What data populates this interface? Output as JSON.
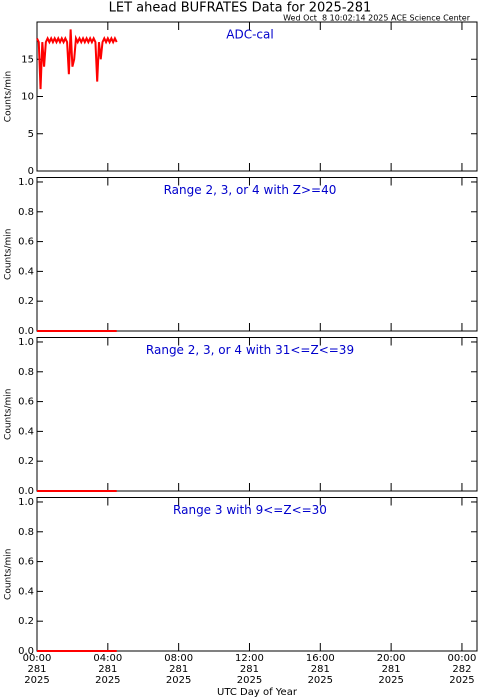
{
  "title": "LET ahead BUFRATES Data for 2025-281",
  "timestamp": "Wed Oct  8 10:02:14 2025 ACE Science Center",
  "x_label": "UTC Day of Year",
  "chart_data": [
    {
      "type": "line",
      "annotation": "ADC-cal",
      "y_label": "Counts/min",
      "color": "#ff0000",
      "annotation_color": "#0000cc",
      "xlim": [
        0,
        24.85
      ],
      "xticks": [
        0,
        4,
        8,
        12,
        16,
        20,
        24
      ],
      "ylim": [
        0,
        20
      ],
      "yticks": [
        0,
        5,
        10,
        15
      ],
      "x": [
        0,
        0.1,
        0.2,
        0.3,
        0.4,
        0.5,
        0.6,
        0.7,
        0.8,
        0.9,
        1,
        1.1,
        1.2,
        1.3,
        1.4,
        1.5,
        1.6,
        1.7,
        1.8,
        1.9,
        2,
        2.1,
        2.2,
        2.3,
        2.4,
        2.5,
        2.6,
        2.7,
        2.8,
        2.9,
        3,
        3.1,
        3.2,
        3.3,
        3.4,
        3.5,
        3.6,
        3.7,
        3.8,
        3.9,
        4,
        4.1,
        4.2,
        4.3,
        4.4,
        4.5
      ],
      "values": [
        17.8,
        17.3,
        11,
        17.3,
        14,
        17.3,
        17.8,
        17.3,
        17.8,
        17.3,
        17.8,
        17.3,
        17.8,
        17.3,
        17.8,
        17.3,
        17.8,
        17.3,
        13,
        19,
        14,
        15,
        17.8,
        17.3,
        17.8,
        17.3,
        17.8,
        17.3,
        17.8,
        17.3,
        17.8,
        17.3,
        17.8,
        17.3,
        12,
        17.3,
        15,
        17.3,
        17.8,
        17.3,
        17.8,
        17.3,
        17.8,
        17.3,
        17.8,
        17.3
      ]
    },
    {
      "type": "line",
      "annotation": "Range 2, 3, or 4 with Z>=40",
      "y_label": "Counts/min",
      "color": "#ff0000",
      "annotation_color": "#0000cc",
      "xlim": [
        0,
        24.85
      ],
      "xticks": [
        0,
        4,
        8,
        12,
        16,
        20,
        24
      ],
      "ylim": [
        0,
        1.03
      ],
      "yticks": [
        {
          "value": 0,
          "label": "0.0"
        },
        {
          "value": 0.2,
          "label": "0.2"
        },
        {
          "value": 0.4,
          "label": "0.4"
        },
        {
          "value": 0.6,
          "label": "0.6"
        },
        {
          "value": 0.8,
          "label": "0.8"
        },
        {
          "value": 1,
          "label": "1.0"
        }
      ],
      "x": [
        0,
        4.5
      ],
      "values": [
        0,
        0
      ]
    },
    {
      "type": "line",
      "annotation": "Range 2, 3, or 4 with 31<=Z<=39",
      "y_label": "Counts/min",
      "color": "#ff0000",
      "annotation_color": "#0000cc",
      "xlim": [
        0,
        24.85
      ],
      "xticks": [
        0,
        4,
        8,
        12,
        16,
        20,
        24
      ],
      "ylim": [
        0,
        1.03
      ],
      "yticks": [
        {
          "value": 0,
          "label": "0.0"
        },
        {
          "value": 0.2,
          "label": "0.2"
        },
        {
          "value": 0.4,
          "label": "0.4"
        },
        {
          "value": 0.6,
          "label": "0.6"
        },
        {
          "value": 0.8,
          "label": "0.8"
        },
        {
          "value": 1,
          "label": "1.0"
        }
      ],
      "x": [
        0,
        4.5
      ],
      "values": [
        0,
        0
      ]
    },
    {
      "type": "line",
      "annotation": "Range 3 with 9<=Z<=30",
      "y_label": "Counts/min",
      "color": "#ff0000",
      "annotation_color": "#0000cc",
      "xlim": [
        0,
        24.85
      ],
      "xticks": [
        {
          "value": 0,
          "label": [
            "00:00",
            "281",
            "2025"
          ]
        },
        {
          "value": 4,
          "label": [
            "04:00",
            "281",
            "2025"
          ]
        },
        {
          "value": 8,
          "label": [
            "08:00",
            "281",
            "2025"
          ]
        },
        {
          "value": 12,
          "label": [
            "12:00",
            "281",
            "2025"
          ]
        },
        {
          "value": 16,
          "label": [
            "16:00",
            "281",
            "2025"
          ]
        },
        {
          "value": 20,
          "label": [
            "20:00",
            "281",
            "2025"
          ]
        },
        {
          "value": 24,
          "label": [
            "00:00",
            "282",
            "2025"
          ]
        }
      ],
      "ylim": [
        0,
        1.03
      ],
      "yticks": [
        {
          "value": 0,
          "label": "0.0"
        },
        {
          "value": 0.2,
          "label": "0.2"
        },
        {
          "value": 0.4,
          "label": "0.4"
        },
        {
          "value": 0.6,
          "label": "0.6"
        },
        {
          "value": 0.8,
          "label": "0.8"
        },
        {
          "value": 1,
          "label": "1.0"
        }
      ],
      "x": [
        0,
        4.5
      ],
      "values": [
        0,
        0
      ]
    }
  ]
}
